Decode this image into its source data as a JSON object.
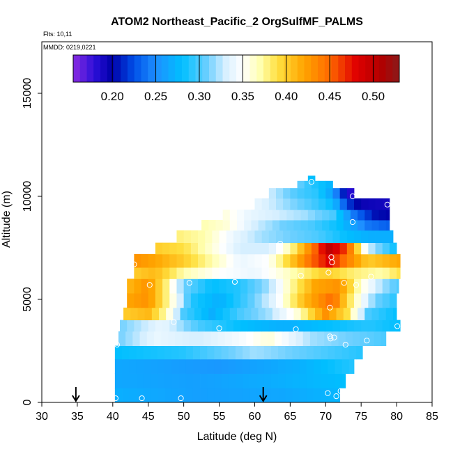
{
  "chart_data": {
    "type": "heatmap",
    "title": "ATOM2 Northeast_Pacific_2 OrgSulfMF_PALMS",
    "annotations": {
      "flights": "Flts: 10,11",
      "dates": "MMDD: 0219,0221"
    },
    "xlabel": "Latitude (deg N)",
    "ylabel": "Altitude (m)",
    "xlim": [
      30,
      85
    ],
    "ylim": [
      0,
      17500
    ],
    "xticks": [
      30,
      35,
      40,
      45,
      50,
      55,
      60,
      65,
      70,
      75,
      80,
      85
    ],
    "yticks": [
      0,
      5000,
      10000,
      15000
    ],
    "grid": false,
    "colorbar": {
      "orientation": "horizontal",
      "placement": "top-inside",
      "range": [
        0.155,
        0.53
      ],
      "ticks": [
        0.2,
        0.25,
        0.3,
        0.35,
        0.4,
        0.45,
        0.5
      ],
      "tick_labels": [
        "0.20",
        "0.25",
        "0.30",
        "0.35",
        "0.40",
        "0.45",
        "0.50"
      ],
      "stops": [
        {
          "value": 0.155,
          "color": "#8a2be2"
        },
        {
          "value": 0.18,
          "color": "#2a0fd8"
        },
        {
          "value": 0.2,
          "color": "#0000a8"
        },
        {
          "value": 0.225,
          "color": "#0050e8"
        },
        {
          "value": 0.25,
          "color": "#1e90ff"
        },
        {
          "value": 0.28,
          "color": "#00bfff"
        },
        {
          "value": 0.31,
          "color": "#6fd0ff"
        },
        {
          "value": 0.33,
          "color": "#d6efff"
        },
        {
          "value": 0.35,
          "color": "#ffffff"
        },
        {
          "value": 0.37,
          "color": "#ffffb0"
        },
        {
          "value": 0.39,
          "color": "#ffe040"
        },
        {
          "value": 0.42,
          "color": "#ffa500"
        },
        {
          "value": 0.45,
          "color": "#ff6a00"
        },
        {
          "value": 0.48,
          "color": "#e00000"
        },
        {
          "value": 0.51,
          "color": "#b00000"
        },
        {
          "value": 0.53,
          "color": "#8b1a1a"
        }
      ]
    },
    "rows": [
      {
        "alt": [
          0,
          700
        ],
        "lat": [
          40.3,
          72.0
        ],
        "anchors": [
          [
            40.3,
            0.27
          ],
          [
            52,
            0.26
          ],
          [
            64,
            0.265
          ],
          [
            72,
            0.275
          ]
        ]
      },
      {
        "alt": [
          700,
          1400
        ],
        "lat": [
          40.3,
          72.8
        ],
        "anchors": [
          [
            40.3,
            0.265
          ],
          [
            52,
            0.26
          ],
          [
            64,
            0.27
          ],
          [
            72.8,
            0.28
          ]
        ]
      },
      {
        "alt": [
          1400,
          2100
        ],
        "lat": [
          40.3,
          74.0
        ],
        "anchors": [
          [
            40.3,
            0.265
          ],
          [
            55,
            0.255
          ],
          [
            66,
            0.27
          ],
          [
            74,
            0.29
          ]
        ]
      },
      {
        "alt": [
          2100,
          2750
        ],
        "lat": [
          40.3,
          75.2
        ],
        "anchors": [
          [
            40.3,
            0.28
          ],
          [
            50,
            0.29
          ],
          [
            60,
            0.32
          ],
          [
            70,
            0.3
          ],
          [
            75.2,
            0.29
          ]
        ]
      },
      {
        "alt": [
          2750,
          3450
        ],
        "lat": [
          40.8,
          78.5
        ],
        "anchors": [
          [
            40.8,
            0.31
          ],
          [
            46,
            0.34
          ],
          [
            52,
            0.33
          ],
          [
            58,
            0.345
          ],
          [
            62,
            0.36
          ],
          [
            68,
            0.32
          ],
          [
            78.5,
            0.3
          ]
        ]
      },
      {
        "alt": [
          3450,
          4000
        ],
        "lat": [
          41.0,
          80.5
        ],
        "anchors": [
          [
            41,
            0.31
          ],
          [
            47,
            0.34
          ],
          [
            52,
            0.3
          ],
          [
            58,
            0.28
          ],
          [
            64,
            0.27
          ],
          [
            70,
            0.28
          ],
          [
            76,
            0.29
          ],
          [
            80.5,
            0.28
          ]
        ]
      },
      {
        "alt": [
          4000,
          4600
        ],
        "lat": [
          41.5,
          80.0
        ],
        "anchors": [
          [
            41.5,
            0.4
          ],
          [
            45,
            0.41
          ],
          [
            47.5,
            0.37
          ],
          [
            50,
            0.3
          ],
          [
            54,
            0.27
          ],
          [
            58,
            0.3
          ],
          [
            62,
            0.32
          ],
          [
            66,
            0.36
          ],
          [
            70,
            0.43
          ],
          [
            73,
            0.39
          ],
          [
            76,
            0.3
          ],
          [
            80,
            0.28
          ]
        ]
      },
      {
        "alt": [
          4600,
          5300
        ],
        "lat": [
          42.0,
          80.0
        ],
        "anchors": [
          [
            42,
            0.42
          ],
          [
            45,
            0.43
          ],
          [
            48,
            0.37
          ],
          [
            51,
            0.29
          ],
          [
            55,
            0.27
          ],
          [
            59,
            0.3
          ],
          [
            63,
            0.34
          ],
          [
            67,
            0.41
          ],
          [
            71,
            0.45
          ],
          [
            74,
            0.37
          ],
          [
            77,
            0.31
          ],
          [
            80,
            0.29
          ]
        ]
      },
      {
        "alt": [
          5300,
          6000
        ],
        "lat": [
          42.0,
          80.3
        ],
        "anchors": [
          [
            42,
            0.41
          ],
          [
            45,
            0.43
          ],
          [
            47.5,
            0.38
          ],
          [
            50,
            0.31
          ],
          [
            54,
            0.28
          ],
          [
            58,
            0.29
          ],
          [
            62,
            0.32
          ],
          [
            65,
            0.37
          ],
          [
            68.5,
            0.42
          ],
          [
            72,
            0.43
          ],
          [
            75,
            0.36
          ],
          [
            78,
            0.32
          ],
          [
            80.3,
            0.3
          ]
        ]
      },
      {
        "alt": [
          6000,
          6550
        ],
        "lat": [
          43.0,
          80.5
        ],
        "anchors": [
          [
            43,
            0.4
          ],
          [
            46,
            0.41
          ],
          [
            50,
            0.37
          ],
          [
            55,
            0.35
          ],
          [
            60,
            0.34
          ],
          [
            64,
            0.36
          ],
          [
            67,
            0.38
          ],
          [
            70,
            0.4
          ],
          [
            74,
            0.38
          ],
          [
            78,
            0.37
          ],
          [
            80.5,
            0.39
          ]
        ]
      },
      {
        "alt": [
          6550,
          7200
        ],
        "lat": [
          43.0,
          80.5
        ],
        "anchors": [
          [
            43,
            0.43
          ],
          [
            46,
            0.42
          ],
          [
            50,
            0.4
          ],
          [
            54,
            0.37
          ],
          [
            58,
            0.34
          ],
          [
            62,
            0.35
          ],
          [
            65,
            0.4
          ],
          [
            68,
            0.45
          ],
          [
            70.5,
            0.48
          ],
          [
            73,
            0.44
          ],
          [
            76,
            0.4
          ],
          [
            80.5,
            0.42
          ]
        ]
      },
      {
        "alt": [
          7200,
          7750
        ],
        "lat": [
          46.0,
          80.0
        ],
        "anchors": [
          [
            46,
            0.4
          ],
          [
            50,
            0.39
          ],
          [
            54,
            0.36
          ],
          [
            58,
            0.33
          ],
          [
            62,
            0.33
          ],
          [
            65,
            0.37
          ],
          [
            68,
            0.44
          ],
          [
            70.5,
            0.5
          ],
          [
            73,
            0.46
          ],
          [
            76,
            0.33
          ],
          [
            80,
            0.28
          ]
        ]
      },
      {
        "alt": [
          7750,
          8350
        ],
        "lat": [
          49.0,
          79.5
        ],
        "anchors": [
          [
            49,
            0.38
          ],
          [
            53,
            0.37
          ],
          [
            57,
            0.34
          ],
          [
            61,
            0.32
          ],
          [
            65,
            0.31
          ],
          [
            69,
            0.3
          ],
          [
            73,
            0.28
          ],
          [
            76,
            0.27
          ],
          [
            79.5,
            0.27
          ]
        ]
      },
      {
        "alt": [
          8350,
          8850
        ],
        "lat": [
          52.5,
          79.0
        ],
        "anchors": [
          [
            52.5,
            0.37
          ],
          [
            56,
            0.36
          ],
          [
            60,
            0.33
          ],
          [
            64,
            0.31
          ],
          [
            68,
            0.3
          ],
          [
            72,
            0.28
          ],
          [
            76,
            0.24
          ],
          [
            79,
            0.23
          ]
        ]
      },
      {
        "alt": [
          8850,
          9350
        ],
        "lat": [
          55.5,
          79.0
        ],
        "anchors": [
          [
            55.5,
            0.36
          ],
          [
            59,
            0.34
          ],
          [
            63,
            0.33
          ],
          [
            67,
            0.32
          ],
          [
            71,
            0.3
          ],
          [
            74,
            0.24
          ],
          [
            77,
            0.205
          ],
          [
            79,
            0.2
          ]
        ]
      },
      {
        "alt": [
          9350,
          9900
        ],
        "lat": [
          60.0,
          79.0
        ],
        "anchors": [
          [
            60,
            0.34
          ],
          [
            64,
            0.32
          ],
          [
            68,
            0.3
          ],
          [
            71,
            0.28
          ],
          [
            73,
            0.22
          ],
          [
            75,
            0.195
          ],
          [
            79,
            0.19
          ]
        ]
      },
      {
        "alt": [
          9900,
          10400
        ],
        "lat": [
          62.0,
          74.0
        ],
        "anchors": [
          [
            62,
            0.33
          ],
          [
            66,
            0.3
          ],
          [
            69,
            0.29
          ],
          [
            71,
            0.26
          ],
          [
            72.5,
            0.21
          ],
          [
            74,
            0.17
          ]
        ]
      },
      {
        "alt": [
          10400,
          10750
        ],
        "lat": [
          66.0,
          71.0
        ],
        "anchors": [
          [
            66,
            0.31
          ],
          [
            68,
            0.29
          ],
          [
            70,
            0.28
          ],
          [
            71,
            0.27
          ]
        ]
      },
      {
        "alt": [
          10750,
          11000
        ],
        "lat": [
          67.5,
          68.5
        ],
        "anchors": [
          [
            67.5,
            0.28
          ],
          [
            68.5,
            0.28
          ]
        ]
      }
    ],
    "sample_points": [
      [
        40.4,
        200
      ],
      [
        44.1,
        200
      ],
      [
        49.6,
        200
      ],
      [
        70.3,
        450
      ],
      [
        71.5,
        300
      ],
      [
        72.1,
        550
      ],
      [
        40.6,
        2800
      ],
      [
        72.8,
        2800
      ],
      [
        75.8,
        3000
      ],
      [
        80.1,
        3700
      ],
      [
        70.6,
        3200
      ],
      [
        71.2,
        3150
      ],
      [
        70.7,
        3100
      ],
      [
        65.8,
        3550
      ],
      [
        55.0,
        3600
      ],
      [
        48.6,
        3900
      ],
      [
        70.6,
        4600
      ],
      [
        45.2,
        5700
      ],
      [
        50.8,
        5800
      ],
      [
        57.2,
        5850
      ],
      [
        72.6,
        5800
      ],
      [
        74.3,
        5700
      ],
      [
        66.5,
        6150
      ],
      [
        70.4,
        6300
      ],
      [
        76.4,
        6100
      ],
      [
        43.0,
        6700
      ],
      [
        70.9,
        6800
      ],
      [
        70.8,
        7050
      ],
      [
        63.6,
        7700
      ],
      [
        73.8,
        8750
      ],
      [
        73.8,
        10000
      ],
      [
        78.7,
        9600
      ],
      [
        68.0,
        10700
      ]
    ],
    "arrows_at_lat": [
      34.8,
      61.2
    ]
  }
}
